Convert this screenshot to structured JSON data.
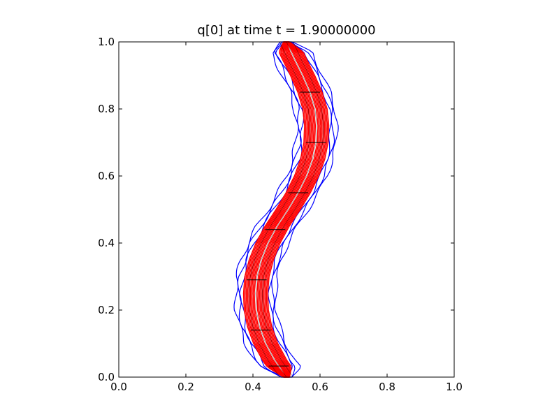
{
  "chart_data": {
    "type": "line",
    "title": "q[0] at time t =     1.90000000",
    "xlabel": "",
    "ylabel": "",
    "xlim": [
      0.0,
      1.0
    ],
    "ylim": [
      0.0,
      1.0
    ],
    "x_ticks": [
      0.0,
      0.2,
      0.4,
      0.6,
      0.8,
      1.0
    ],
    "y_ticks": [
      0.0,
      0.2,
      0.4,
      0.6,
      0.8,
      1.0
    ],
    "x_tick_labels": [
      "0.0",
      "0.2",
      "0.4",
      "0.6",
      "0.8",
      "1.0"
    ],
    "y_tick_labels": [
      "0.0",
      "0.2",
      "0.4",
      "0.6",
      "0.8",
      "1.0"
    ],
    "grid": false,
    "colors": {
      "contour_blue": "#0000ff",
      "contour_red": "#ff0000",
      "mesh": "#000000"
    },
    "band_center": [
      {
        "y": 0.0,
        "x": 0.5
      },
      {
        "y": 0.05,
        "x": 0.465
      },
      {
        "y": 0.1,
        "x": 0.438
      },
      {
        "y": 0.15,
        "x": 0.42
      },
      {
        "y": 0.2,
        "x": 0.41
      },
      {
        "y": 0.25,
        "x": 0.408
      },
      {
        "y": 0.3,
        "x": 0.412
      },
      {
        "y": 0.35,
        "x": 0.425
      },
      {
        "y": 0.4,
        "x": 0.445
      },
      {
        "y": 0.45,
        "x": 0.472
      },
      {
        "y": 0.5,
        "x": 0.505
      },
      {
        "y": 0.55,
        "x": 0.535
      },
      {
        "y": 0.6,
        "x": 0.56
      },
      {
        "y": 0.65,
        "x": 0.578
      },
      {
        "y": 0.7,
        "x": 0.588
      },
      {
        "y": 0.75,
        "x": 0.59
      },
      {
        "y": 0.8,
        "x": 0.585
      },
      {
        "y": 0.85,
        "x": 0.57
      },
      {
        "y": 0.9,
        "x": 0.548
      },
      {
        "y": 0.95,
        "x": 0.523
      },
      {
        "y": 1.0,
        "x": 0.5
      }
    ],
    "contour_half_widths": [
      {
        "color": "red",
        "half_width": 0.004
      },
      {
        "color": "red",
        "half_width": 0.008
      },
      {
        "color": "red",
        "half_width": 0.012
      },
      {
        "color": "red",
        "half_width": 0.016
      },
      {
        "color": "red",
        "half_width": 0.02
      },
      {
        "color": "red",
        "half_width": 0.024
      },
      {
        "color": "red",
        "half_width": 0.028
      },
      {
        "color": "red",
        "half_width": 0.032
      },
      {
        "color": "red",
        "half_width": 0.036
      },
      {
        "color": "blue",
        "half_width": 0.042
      },
      {
        "color": "blue",
        "half_width": 0.05
      },
      {
        "color": "blue",
        "half_width": 0.06
      }
    ],
    "mesh_rows_y": [
      0.033,
      0.14,
      0.29,
      0.44,
      0.55,
      0.7,
      0.85
    ]
  }
}
